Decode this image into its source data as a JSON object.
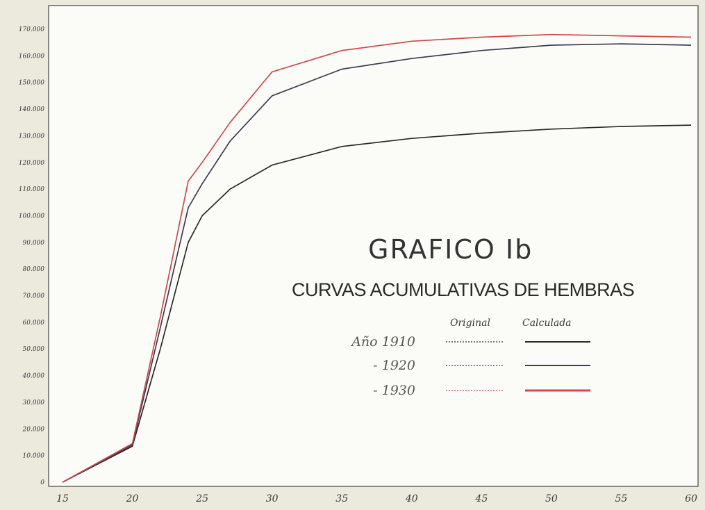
{
  "chart_data": {
    "type": "line",
    "title": "GRAFICO Ib",
    "subtitle": "CURVAS ACUMULATIVAS DE HEMBRAS",
    "xlabel": "",
    "ylabel": "",
    "x_ticks": [
      "15",
      "20",
      "25",
      "30",
      "35",
      "40",
      "45",
      "50",
      "55",
      "60"
    ],
    "y_ticks": [
      "0",
      "10.000",
      "20.000",
      "30.000",
      "40.000",
      "50.000",
      "60.000",
      "70.000",
      "80.000",
      "90.000",
      "100.000",
      "110.000",
      "120.000",
      "130.000",
      "140.000",
      "150.000",
      "160.000",
      "170.000"
    ],
    "xlim": [
      15,
      60
    ],
    "ylim": [
      0,
      170000
    ],
    "grid": false,
    "legend": {
      "position": "center-right",
      "header_original": "Original",
      "header_calculada": "Calculada"
    },
    "series": [
      {
        "name": "Año 1910",
        "color": "#2a2a2a",
        "x": [
          15,
          20,
          22,
          24,
          25,
          27,
          30,
          35,
          40,
          45,
          50,
          55,
          60
        ],
        "y": [
          0,
          13500,
          50000,
          90000,
          100000,
          110000,
          119000,
          126000,
          129000,
          131000,
          132500,
          133500,
          134000
        ]
      },
      {
        "name": "1920",
        "color": "#3c3c50",
        "x": [
          15,
          20,
          22,
          24,
          25,
          27,
          30,
          35,
          40,
          45,
          50,
          55,
          60
        ],
        "y": [
          0,
          14000,
          58000,
          103000,
          112000,
          128000,
          145000,
          155000,
          159000,
          162000,
          164000,
          164500,
          164000
        ]
      },
      {
        "name": "1930",
        "color": "#d04848",
        "x": [
          15,
          20,
          22,
          24,
          25,
          27,
          30,
          35,
          40,
          45,
          50,
          55,
          60
        ],
        "y": [
          0,
          14500,
          62000,
          113000,
          120000,
          135000,
          154000,
          162000,
          165500,
          167000,
          168000,
          167500,
          167000
        ]
      }
    ]
  },
  "legend_labels": [
    "Año 1910",
    "- 1920",
    "- 1930"
  ]
}
